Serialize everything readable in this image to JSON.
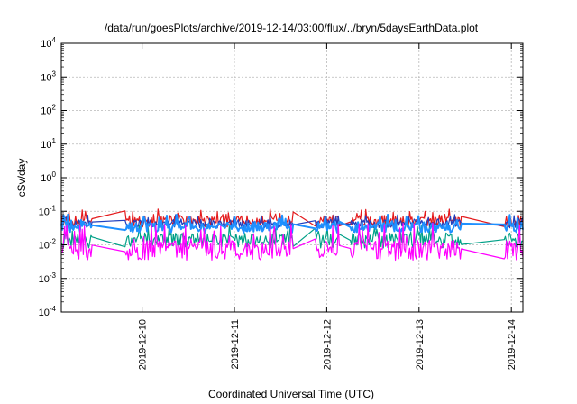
{
  "chart_data": {
    "type": "line",
    "title": "/data/run/goesPlots/archive/2019-12-14/03:00/flux/../bryn/5daysEarthData.plot",
    "xlabel": "Coordinated Universal Time (UTC)",
    "ylabel": "cSv/day",
    "y_scale": "log",
    "ylim": [
      0.0001,
      10000
    ],
    "y_ticks": [
      {
        "value": 0.0001,
        "base": "10",
        "exp": "-4"
      },
      {
        "value": 0.001,
        "base": "10",
        "exp": "-3"
      },
      {
        "value": 0.01,
        "base": "10",
        "exp": "-2"
      },
      {
        "value": 0.1,
        "base": "10",
        "exp": "-1"
      },
      {
        "value": 1,
        "base": "10",
        "exp": "0"
      },
      {
        "value": 10,
        "base": "10",
        "exp": "1"
      },
      {
        "value": 100,
        "base": "10",
        "exp": "2"
      },
      {
        "value": 1000,
        "base": "10",
        "exp": "3"
      },
      {
        "value": 10000,
        "base": "10",
        "exp": "4"
      }
    ],
    "xlim": [
      "2019-12-09T03:00",
      "2019-12-14T03:00"
    ],
    "x_ticks": [
      {
        "value": "2019-12-10T00:00",
        "label": "2019-12-10"
      },
      {
        "value": "2019-12-11T00:00",
        "label": "2019-12-11"
      },
      {
        "value": "2019-12-12T00:00",
        "label": "2019-12-12"
      },
      {
        "value": "2019-12-13T00:00",
        "label": "2019-12-13"
      },
      {
        "value": "2019-12-14T00:00",
        "label": "2019-12-14"
      }
    ],
    "grid": true,
    "gaps": [
      [
        "2019-12-09T11:00",
        "2019-12-09T19:30"
      ],
      [
        "2019-12-11T15:30",
        "2019-12-11T21:00"
      ],
      [
        "2019-12-12T03:30",
        "2019-12-12T06:00"
      ],
      [
        "2019-12-13T11:00",
        "2019-12-13T22:00"
      ]
    ],
    "series": [
      {
        "color": "#e41a1c",
        "baseline": 0.055,
        "spike_max": 0.12,
        "spread": 0.35
      },
      {
        "color": "#1f3fbf",
        "baseline": 0.045,
        "spike_max": 0.08,
        "spread": 0.25
      },
      {
        "color": "#00a087",
        "baseline": 0.015,
        "spike_max": 0.04,
        "spread": 0.45
      },
      {
        "color": "#1e90ff",
        "baseline": 0.035,
        "spike_max": 0.08,
        "spread": 0.3
      },
      {
        "color": "#ff00ff",
        "baseline": 0.008,
        "spike_max": 0.045,
        "spread": 0.6
      }
    ]
  }
}
